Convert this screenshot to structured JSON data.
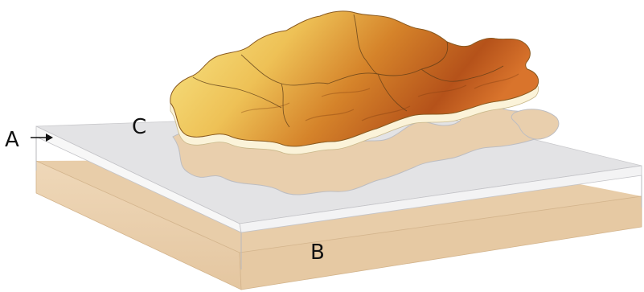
{
  "labels": {
    "a": "A",
    "b": "B",
    "c": "C"
  },
  "colors": {
    "top_plate": "#e3e3e5",
    "top_plate_edge": "#cfcfd2",
    "bottom_plate": "#e9cfad",
    "bottom_plate_edge": "#dcc09b",
    "map_light": "#f6e07a",
    "map_mid": "#e2a13a",
    "map_dark": "#b04a12"
  }
}
